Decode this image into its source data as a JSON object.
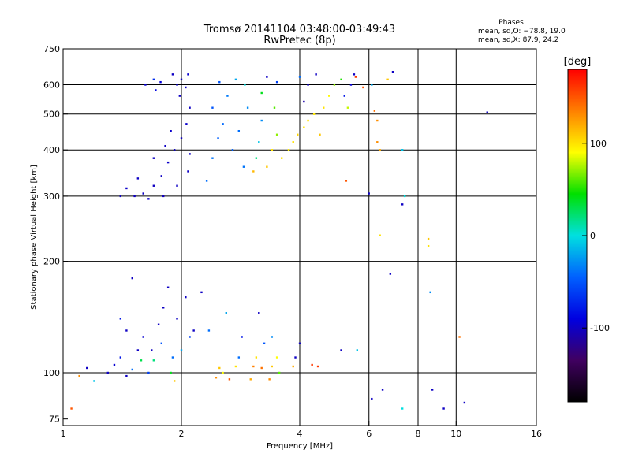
{
  "chart_data": {
    "type": "scatter",
    "title": "Tromsø 20141104 03:48:00-03:49:43",
    "subtitle": "RwPretec (8p)",
    "xlabel": "Frequency [MHz]",
    "ylabel": "Stationary phase Virtual Height [km]",
    "xscale": "log",
    "yscale": "log",
    "xlim": [
      1,
      16
    ],
    "ylim": [
      72,
      750
    ],
    "xticks": [
      1,
      2,
      4,
      6,
      8,
      10,
      16
    ],
    "yticks": [
      75,
      100,
      200,
      300,
      400,
      500,
      600,
      750
    ],
    "vgrid": [
      2,
      4,
      6,
      8,
      10
    ],
    "hgrid": [
      100,
      200,
      300,
      400,
      500,
      600
    ],
    "phase_stats": {
      "title": "Phases",
      "line_o": "mean, sd,O: −78.8, 19.0",
      "line_x": "mean, sd,X:  87.9, 24.2"
    },
    "colorbar": {
      "label": "[deg]",
      "range": [
        -180,
        180
      ],
      "ticks": [
        100,
        0,
        -100
      ],
      "colors": [
        "#ff0000",
        "#ff8000",
        "#ffff00",
        "#00e000",
        "#00e0e0",
        "#0060ff",
        "#0000e0",
        "#400060",
        "#000000"
      ]
    },
    "series": [
      {
        "points": [
          {
            "x": 1.62,
            "y": 600,
            "phase": -95
          },
          {
            "x": 1.7,
            "y": 620,
            "phase": -70
          },
          {
            "x": 1.72,
            "y": 580,
            "phase": -88
          },
          {
            "x": 1.77,
            "y": 610,
            "phase": -92
          },
          {
            "x": 1.9,
            "y": 640,
            "phase": -100
          },
          {
            "x": 1.95,
            "y": 600,
            "phase": -98
          },
          {
            "x": 2.0,
            "y": 620,
            "phase": -102
          },
          {
            "x": 2.05,
            "y": 590,
            "phase": -99
          },
          {
            "x": 2.08,
            "y": 640,
            "phase": -96
          },
          {
            "x": 1.98,
            "y": 560,
            "phase": -100
          },
          {
            "x": 2.1,
            "y": 520,
            "phase": -100
          },
          {
            "x": 2.06,
            "y": 470,
            "phase": -97
          },
          {
            "x": 2.0,
            "y": 430,
            "phase": -102
          },
          {
            "x": 1.92,
            "y": 400,
            "phase": -100
          },
          {
            "x": 1.85,
            "y": 370,
            "phase": -98
          },
          {
            "x": 1.78,
            "y": 340,
            "phase": -100
          },
          {
            "x": 1.7,
            "y": 320,
            "phase": -101
          },
          {
            "x": 1.6,
            "y": 305,
            "phase": -99
          },
          {
            "x": 1.52,
            "y": 300,
            "phase": -100
          },
          {
            "x": 1.45,
            "y": 315,
            "phase": -98
          },
          {
            "x": 1.4,
            "y": 300,
            "phase": -100
          },
          {
            "x": 1.65,
            "y": 295,
            "phase": -100
          },
          {
            "x": 1.8,
            "y": 300,
            "phase": -102
          },
          {
            "x": 1.95,
            "y": 320,
            "phase": -100
          },
          {
            "x": 2.08,
            "y": 350,
            "phase": -99
          },
          {
            "x": 2.1,
            "y": 390,
            "phase": -100
          },
          {
            "x": 1.88,
            "y": 450,
            "phase": -97
          },
          {
            "x": 1.82,
            "y": 410,
            "phase": -100
          },
          {
            "x": 1.7,
            "y": 380,
            "phase": -100
          },
          {
            "x": 1.55,
            "y": 335,
            "phase": -99
          },
          {
            "x": 2.32,
            "y": 330,
            "phase": -40
          },
          {
            "x": 2.4,
            "y": 380,
            "phase": -38
          },
          {
            "x": 2.48,
            "y": 430,
            "phase": -45
          },
          {
            "x": 2.55,
            "y": 470,
            "phase": -42
          },
          {
            "x": 2.4,
            "y": 520,
            "phase": -50
          },
          {
            "x": 2.62,
            "y": 560,
            "phase": -36
          },
          {
            "x": 2.7,
            "y": 400,
            "phase": -44
          },
          {
            "x": 2.8,
            "y": 450,
            "phase": -40
          },
          {
            "x": 2.88,
            "y": 360,
            "phase": -38
          },
          {
            "x": 2.95,
            "y": 520,
            "phase": -30
          },
          {
            "x": 2.5,
            "y": 610,
            "phase": -50
          },
          {
            "x": 2.75,
            "y": 620,
            "phase": -20
          },
          {
            "x": 2.9,
            "y": 600,
            "phase": 0
          },
          {
            "x": 3.05,
            "y": 350,
            "phase": 115
          },
          {
            "x": 3.1,
            "y": 380,
            "phase": 20
          },
          {
            "x": 3.15,
            "y": 420,
            "phase": -10
          },
          {
            "x": 3.2,
            "y": 480,
            "phase": -30
          },
          {
            "x": 3.3,
            "y": 360,
            "phase": 110
          },
          {
            "x": 3.4,
            "y": 400,
            "phase": 100
          },
          {
            "x": 3.5,
            "y": 440,
            "phase": 70
          },
          {
            "x": 3.45,
            "y": 520,
            "phase": 60
          },
          {
            "x": 3.6,
            "y": 380,
            "phase": 100
          },
          {
            "x": 3.75,
            "y": 400,
            "phase": 95
          },
          {
            "x": 3.85,
            "y": 420,
            "phase": 100
          },
          {
            "x": 3.2,
            "y": 570,
            "phase": 40
          },
          {
            "x": 3.5,
            "y": 610,
            "phase": -60
          },
          {
            "x": 3.3,
            "y": 630,
            "phase": -100
          },
          {
            "x": 3.95,
            "y": 440,
            "phase": 105
          },
          {
            "x": 4.1,
            "y": 460,
            "phase": 100
          },
          {
            "x": 4.2,
            "y": 480,
            "phase": 102
          },
          {
            "x": 4.35,
            "y": 500,
            "phase": 98
          },
          {
            "x": 4.5,
            "y": 440,
            "phase": 110
          },
          {
            "x": 4.6,
            "y": 520,
            "phase": 100
          },
          {
            "x": 4.75,
            "y": 560,
            "phase": 92
          },
          {
            "x": 4.9,
            "y": 600,
            "phase": 70
          },
          {
            "x": 5.1,
            "y": 620,
            "phase": 50
          },
          {
            "x": 5.2,
            "y": 560,
            "phase": -80
          },
          {
            "x": 5.4,
            "y": 600,
            "phase": -95
          },
          {
            "x": 5.5,
            "y": 640,
            "phase": -100
          },
          {
            "x": 5.3,
            "y": 520,
            "phase": 80
          },
          {
            "x": 4.4,
            "y": 640,
            "phase": -100
          },
          {
            "x": 4.0,
            "y": 630,
            "phase": -40
          },
          {
            "x": 4.2,
            "y": 600,
            "phase": -100
          },
          {
            "x": 4.1,
            "y": 540,
            "phase": -110
          },
          {
            "x": 5.55,
            "y": 630,
            "phase": 160
          },
          {
            "x": 5.25,
            "y": 330,
            "phase": 150
          },
          {
            "x": 5.8,
            "y": 590,
            "phase": 150
          },
          {
            "x": 6.2,
            "y": 510,
            "phase": 140
          },
          {
            "x": 6.3,
            "y": 480,
            "phase": 130
          },
          {
            "x": 6.3,
            "y": 420,
            "phase": 130
          },
          {
            "x": 6.4,
            "y": 400,
            "phase": 120
          },
          {
            "x": 6.7,
            "y": 620,
            "phase": 110
          },
          {
            "x": 6.9,
            "y": 650,
            "phase": -100
          },
          {
            "x": 6.1,
            "y": 600,
            "phase": -20
          },
          {
            "x": 6.0,
            "y": 305,
            "phase": -100
          },
          {
            "x": 6.4,
            "y": 235,
            "phase": 100
          },
          {
            "x": 7.3,
            "y": 285,
            "phase": -100
          },
          {
            "x": 7.4,
            "y": 300,
            "phase": 0
          },
          {
            "x": 7.3,
            "y": 400,
            "phase": -10
          },
          {
            "x": 6.8,
            "y": 185,
            "phase": -100
          },
          {
            "x": 8.5,
            "y": 230,
            "phase": 110
          },
          {
            "x": 8.5,
            "y": 220,
            "phase": 100
          },
          {
            "x": 8.6,
            "y": 165,
            "phase": -30
          },
          {
            "x": 12.0,
            "y": 505,
            "phase": -100
          },
          {
            "x": 10.2,
            "y": 125,
            "phase": 140
          },
          {
            "x": 1.05,
            "y": 80,
            "phase": 150
          },
          {
            "x": 1.1,
            "y": 98,
            "phase": 130
          },
          {
            "x": 1.15,
            "y": 103,
            "phase": -100
          },
          {
            "x": 1.2,
            "y": 95,
            "phase": -10
          },
          {
            "x": 1.3,
            "y": 100,
            "phase": -100
          },
          {
            "x": 1.35,
            "y": 105,
            "phase": -95
          },
          {
            "x": 1.4,
            "y": 110,
            "phase": -80
          },
          {
            "x": 1.45,
            "y": 98,
            "phase": -100
          },
          {
            "x": 1.5,
            "y": 102,
            "phase": -40
          },
          {
            "x": 1.55,
            "y": 115,
            "phase": -100
          },
          {
            "x": 1.6,
            "y": 125,
            "phase": -95
          },
          {
            "x": 1.65,
            "y": 100,
            "phase": -60
          },
          {
            "x": 1.7,
            "y": 108,
            "phase": 20
          },
          {
            "x": 1.75,
            "y": 135,
            "phase": -100
          },
          {
            "x": 1.8,
            "y": 150,
            "phase": -100
          },
          {
            "x": 1.85,
            "y": 170,
            "phase": -100
          },
          {
            "x": 1.9,
            "y": 110,
            "phase": -40
          },
          {
            "x": 1.92,
            "y": 95,
            "phase": 110
          },
          {
            "x": 1.95,
            "y": 140,
            "phase": -100
          },
          {
            "x": 2.0,
            "y": 115,
            "phase": -20
          },
          {
            "x": 2.05,
            "y": 160,
            "phase": -100
          },
          {
            "x": 2.1,
            "y": 125,
            "phase": -60
          },
          {
            "x": 2.15,
            "y": 130,
            "phase": -100
          },
          {
            "x": 1.78,
            "y": 120,
            "phase": -50
          },
          {
            "x": 1.88,
            "y": 100,
            "phase": 40
          },
          {
            "x": 1.5,
            "y": 180,
            "phase": -100
          },
          {
            "x": 1.4,
            "y": 140,
            "phase": -80
          },
          {
            "x": 1.58,
            "y": 108,
            "phase": 30
          },
          {
            "x": 1.45,
            "y": 130,
            "phase": -100
          },
          {
            "x": 1.68,
            "y": 115,
            "phase": -100
          },
          {
            "x": 2.25,
            "y": 165,
            "phase": -100
          },
          {
            "x": 2.35,
            "y": 130,
            "phase": -40
          },
          {
            "x": 2.45,
            "y": 97,
            "phase": 130
          },
          {
            "x": 2.5,
            "y": 103,
            "phase": 110
          },
          {
            "x": 2.55,
            "y": 100,
            "phase": 90
          },
          {
            "x": 2.65,
            "y": 96,
            "phase": 150
          },
          {
            "x": 2.75,
            "y": 104,
            "phase": 100
          },
          {
            "x": 2.8,
            "y": 110,
            "phase": -40
          },
          {
            "x": 2.6,
            "y": 145,
            "phase": -20
          },
          {
            "x": 2.85,
            "y": 125,
            "phase": -80
          },
          {
            "x": 3.0,
            "y": 96,
            "phase": 120
          },
          {
            "x": 3.05,
            "y": 104,
            "phase": 135
          },
          {
            "x": 3.1,
            "y": 110,
            "phase": 100
          },
          {
            "x": 3.2,
            "y": 103,
            "phase": 140
          },
          {
            "x": 3.15,
            "y": 145,
            "phase": -100
          },
          {
            "x": 3.25,
            "y": 120,
            "phase": -50
          },
          {
            "x": 3.35,
            "y": 96,
            "phase": 130
          },
          {
            "x": 3.4,
            "y": 104,
            "phase": 110
          },
          {
            "x": 3.5,
            "y": 110,
            "phase": 90
          },
          {
            "x": 3.55,
            "y": 100,
            "phase": 60
          },
          {
            "x": 3.4,
            "y": 125,
            "phase": -30
          },
          {
            "x": 3.85,
            "y": 104,
            "phase": 120
          },
          {
            "x": 3.9,
            "y": 110,
            "phase": -100
          },
          {
            "x": 4.0,
            "y": 120,
            "phase": -100
          },
          {
            "x": 4.3,
            "y": 105,
            "phase": 160
          },
          {
            "x": 4.45,
            "y": 104,
            "phase": 160
          },
          {
            "x": 5.1,
            "y": 115,
            "phase": -100
          },
          {
            "x": 5.6,
            "y": 115,
            "phase": -10
          },
          {
            "x": 6.1,
            "y": 85,
            "phase": -100
          },
          {
            "x": 6.5,
            "y": 90,
            "phase": -100
          },
          {
            "x": 7.3,
            "y": 80,
            "phase": 0
          },
          {
            "x": 8.7,
            "y": 90,
            "phase": -100
          },
          {
            "x": 9.3,
            "y": 80,
            "phase": -100
          },
          {
            "x": 10.5,
            "y": 83,
            "phase": -100
          }
        ]
      }
    ]
  }
}
